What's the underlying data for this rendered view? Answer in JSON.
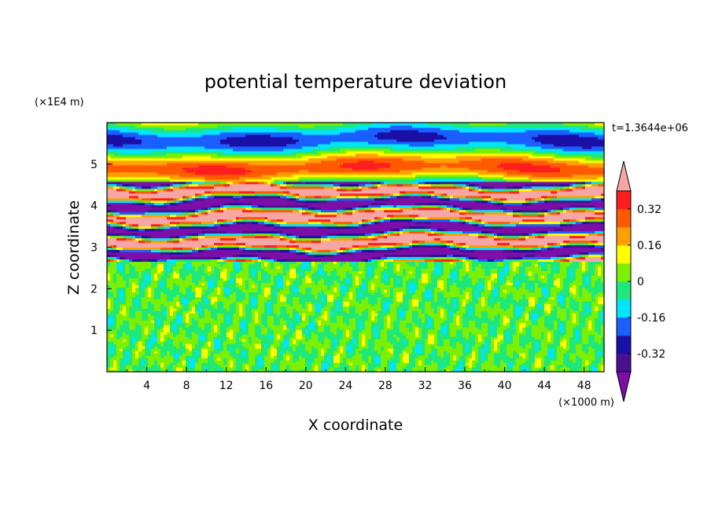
{
  "chart_data": {
    "type": "heatmap",
    "title": "potential temperature deviation",
    "xlabel": "X coordinate",
    "ylabel": "Z coordinate",
    "x_unit": "(×1000 m)",
    "y_unit": "(×1E4 m)",
    "time_label": "t=1.3644e+06",
    "xlim": [
      0,
      50
    ],
    "ylim": [
      0,
      6
    ],
    "x_ticks": [
      "4",
      "8",
      "12",
      "16",
      "20",
      "24",
      "28",
      "32",
      "36",
      "40",
      "44",
      "48"
    ],
    "y_ticks": [
      "1",
      "2",
      "3",
      "4",
      "5"
    ],
    "colorbar": {
      "tick_labels": [
        "0.32",
        "0.16",
        "0",
        "-0.16",
        "-0.32"
      ],
      "tick_values": [
        0.32,
        0.16,
        0,
        -0.16,
        -0.32
      ],
      "levels": [
        -0.4,
        -0.32,
        -0.24,
        -0.16,
        -0.08,
        0,
        0.08,
        0.16,
        0.24,
        0.32,
        0.4
      ],
      "colors": [
        "#7b0fa8",
        "#4b0f8f",
        "#1a0fa6",
        "#1a5fff",
        "#00e5ff",
        "#1ee87a",
        "#7cf000",
        "#ffff00",
        "#ffa000",
        "#ff5a00",
        "#ff1e1e",
        "#f7a6a6"
      ]
    },
    "bands": [
      {
        "z": [
          0.0,
          2.65
        ],
        "description": "fine-scale noise near zero"
      },
      {
        "z": [
          2.65,
          4.6
        ],
        "description": "strong alternating anomalies"
      },
      {
        "z": [
          4.6,
          6.0
        ],
        "description": "weak layered anomalies"
      }
    ]
  }
}
